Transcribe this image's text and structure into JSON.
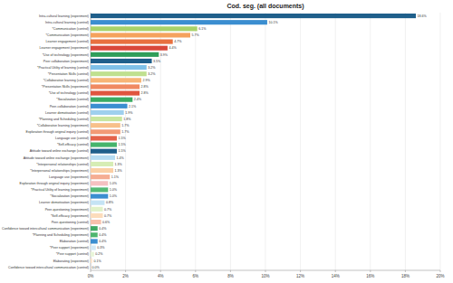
{
  "chart_data": {
    "type": "bar",
    "orientation": "horizontal",
    "title": "Cod. seg. (all documents)",
    "categories": [
      "Intra-cultural learning (experiment)",
      "Intra-cultural learning (control)",
      "*Communication (control)",
      "*Communication (experiment)",
      "Learner engagement (control)",
      "Learner engagement (experiment)",
      "*Use of technology (experiment)",
      "Peer collaboration (experiment)",
      "*Practical Utility of learning (control)",
      "*Presentation Skills (control)",
      "*Collaborative learning (control)",
      "*Presentation Skills (experiment)",
      "*Use of technology (control)",
      "*Socialization (control)",
      "Peer-collaboration (control)",
      "Learner demotivation (control)",
      "*Planning and Scheduling (control)",
      "*Collaborative learning (experiment)",
      "Exploration through original inquiry (control)",
      "Language use (control)",
      "*Self-efficacy (control)",
      "Attitude toward online exchange (control)",
      "Attitude toward online exchange (experiment)",
      "*Interpersonal relationships (control)",
      "*Interpersonal relationships (experiment)",
      "Language use (experiment)",
      "Exploration through original inquiry (experiment)",
      "*Practical Utility of learning (experiment)",
      "*Socialization (experiment)",
      "Learner demotivation (experiment)",
      "Peer-questioning (experiment)",
      "*Self-efficacy (experiment)",
      "Peer-questioning (control)",
      "Confidence toward intercultural communication (experiment)",
      "*Planning and Scheduling (experiment)",
      "Elaboration (control)",
      "*Peer support (experiment)",
      "*Peer support (control)",
      "Elaborating (experiment)",
      "Confidence toward intercultural communication (control)"
    ],
    "values": [
      18.6,
      10.1,
      6.1,
      5.7,
      4.7,
      4.4,
      3.9,
      3.5,
      3.2,
      3.2,
      2.9,
      2.8,
      2.8,
      2.4,
      2.1,
      1.9,
      1.8,
      1.7,
      1.7,
      1.5,
      1.5,
      1.5,
      1.4,
      1.3,
      1.3,
      1.1,
      1.0,
      1.0,
      1.0,
      0.8,
      0.7,
      0.7,
      0.6,
      0.4,
      0.4,
      0.4,
      0.3,
      0.2,
      0.1,
      0.0
    ],
    "value_labels": [
      "18.6%",
      "10.1%",
      "6.1%",
      "5.7%",
      "4.7%",
      "4.4%",
      "3.9%",
      "3.5%",
      "3.2%",
      "3.2%",
      "2.9%",
      "2.8%",
      "2.8%",
      "2.4%",
      "2.1%",
      "1.9%",
      "1.8%",
      "1.7%",
      "1.7%",
      "1.5%",
      "1.5%",
      "1.5%",
      "1.4%",
      "1.3%",
      "1.3%",
      "1.1%",
      "1.0%",
      "1.0%",
      "1.0%",
      "0.8%",
      "0.7%",
      "0.7%",
      "0.6%",
      "0.4%",
      "0.4%",
      "0.4%",
      "0.3%",
      "0.2%",
      "0.1%",
      "0.0%"
    ],
    "colors": [
      "#1f5f8b",
      "#3b8ed0",
      "#a8d26a",
      "#f5a25d",
      "#e8703f",
      "#d9473a",
      "#2f9e5a",
      "#1f5f8b",
      "#7fc1e8",
      "#bfe08f",
      "#f7b577",
      "#f08a62",
      "#e0553f",
      "#3aab63",
      "#3b8ed0",
      "#9fd0ee",
      "#c9e6a0",
      "#f8c08a",
      "#f29a76",
      "#e4624a",
      "#46b46c",
      "#1f5f8b",
      "#b6dcf2",
      "#d6edb5",
      "#fad0a6",
      "#f5ad93",
      "#f5c1c1",
      "#55ba76",
      "#3b8ed0",
      "#c5e3f4",
      "#e0f1c8",
      "#fcdcbc",
      "#f8c0ab",
      "#40a862",
      "#4fb56e",
      "#3b8ed0",
      "#d2e9f6",
      "#e8f5d8",
      "#fde6cf",
      "#f9d3c6"
    ],
    "xlim": [
      0,
      20
    ],
    "xticks": [
      {
        "value": 0,
        "label": "0%"
      },
      {
        "value": 2,
        "label": "2%"
      },
      {
        "value": 4,
        "label": "4%"
      },
      {
        "value": 6,
        "label": "6%"
      },
      {
        "value": 8,
        "label": "8%"
      },
      {
        "value": 10,
        "label": "10%"
      },
      {
        "value": 12,
        "label": "12%"
      },
      {
        "value": 14,
        "label": "14%"
      },
      {
        "value": 16,
        "label": "16%"
      },
      {
        "value": 18,
        "label": "18%"
      },
      {
        "value": 20,
        "label": "20%"
      }
    ],
    "grid": true,
    "data_labels": true
  }
}
